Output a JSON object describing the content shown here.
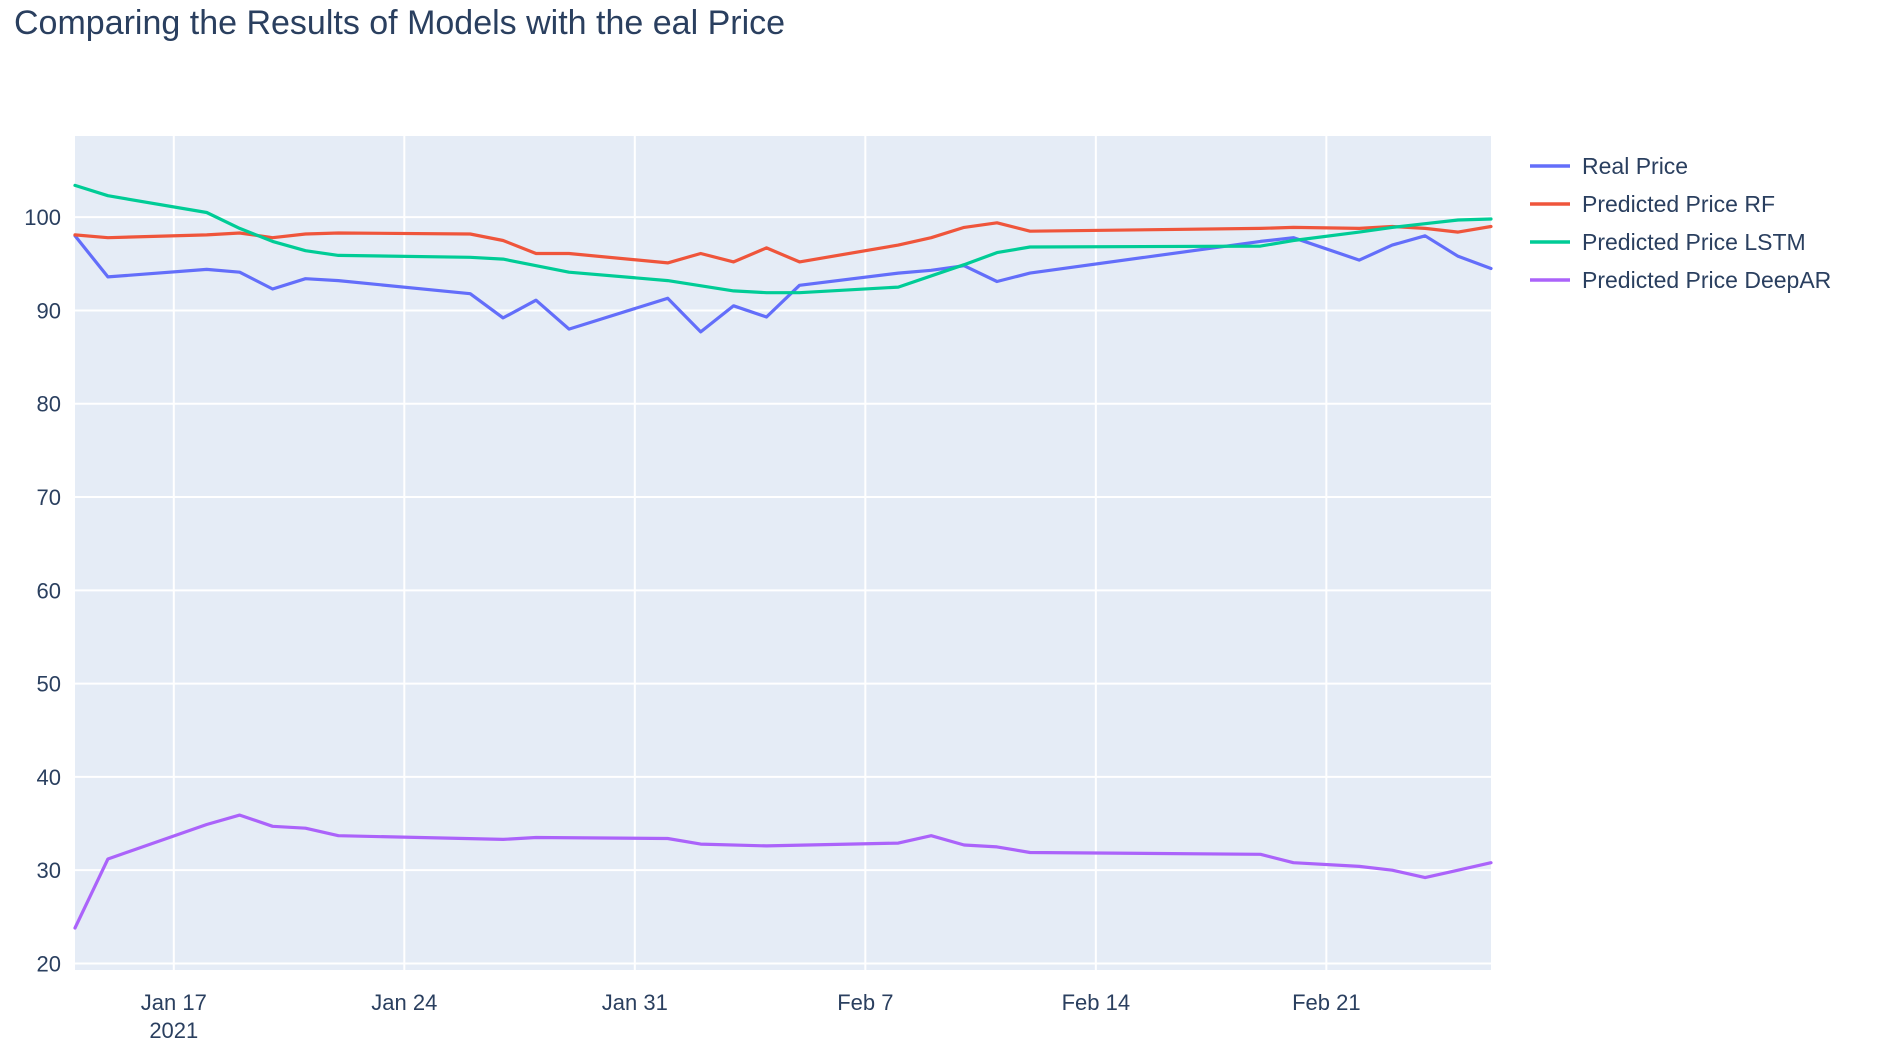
{
  "chart_data": {
    "type": "line",
    "title": "Comparing the Results of Models with the eal Price",
    "xlabel": "",
    "ylabel": "",
    "x_range": [
      "2021-01-14",
      "2021-02-26"
    ],
    "ylim": [
      19.3,
      108.7
    ],
    "x_ticks": [
      {
        "date": "2021-01-17",
        "label": "Jan 17",
        "sub": "2021"
      },
      {
        "date": "2021-01-24",
        "label": "Jan 24",
        "sub": ""
      },
      {
        "date": "2021-01-31",
        "label": "Jan 31",
        "sub": ""
      },
      {
        "date": "2021-02-07",
        "label": "Feb 7",
        "sub": ""
      },
      {
        "date": "2021-02-14",
        "label": "Feb 14",
        "sub": ""
      },
      {
        "date": "2021-02-21",
        "label": "Feb 21",
        "sub": ""
      }
    ],
    "y_ticks": [
      20,
      30,
      40,
      50,
      60,
      70,
      80,
      90,
      100
    ],
    "grid": true,
    "legend_position": "top-right",
    "plot_background": "#e5ecf6",
    "series": [
      {
        "name": "Real Price",
        "color": "#636efa",
        "points": [
          [
            "2021-01-14",
            98.0
          ],
          [
            "2021-01-15",
            93.6
          ],
          [
            "2021-01-18",
            94.4
          ],
          [
            "2021-01-19",
            94.1
          ],
          [
            "2021-01-20",
            92.3
          ],
          [
            "2021-01-21",
            93.4
          ],
          [
            "2021-01-22",
            93.2
          ],
          [
            "2021-01-26",
            91.8
          ],
          [
            "2021-01-27",
            89.2
          ],
          [
            "2021-01-28",
            91.1
          ],
          [
            "2021-01-29",
            88.0
          ],
          [
            "2021-02-01",
            91.3
          ],
          [
            "2021-02-02",
            87.7
          ],
          [
            "2021-02-03",
            90.5
          ],
          [
            "2021-02-04",
            89.3
          ],
          [
            "2021-02-05",
            92.7
          ],
          [
            "2021-02-08",
            94.0
          ],
          [
            "2021-02-09",
            94.3
          ],
          [
            "2021-02-10",
            94.8
          ],
          [
            "2021-02-11",
            93.1
          ],
          [
            "2021-02-12",
            94.0
          ],
          [
            "2021-02-19",
            97.4
          ],
          [
            "2021-02-20",
            97.8
          ],
          [
            "2021-02-22",
            95.4
          ],
          [
            "2021-02-23",
            97.0
          ],
          [
            "2021-02-24",
            98.0
          ],
          [
            "2021-02-25",
            95.8
          ],
          [
            "2021-02-26",
            94.5
          ]
        ]
      },
      {
        "name": "Predicted Price RF",
        "color": "#ef553b",
        "points": [
          [
            "2021-01-14",
            98.1
          ],
          [
            "2021-01-15",
            97.8
          ],
          [
            "2021-01-18",
            98.1
          ],
          [
            "2021-01-19",
            98.3
          ],
          [
            "2021-01-20",
            97.8
          ],
          [
            "2021-01-21",
            98.2
          ],
          [
            "2021-01-22",
            98.3
          ],
          [
            "2021-01-26",
            98.2
          ],
          [
            "2021-01-27",
            97.5
          ],
          [
            "2021-01-28",
            96.1
          ],
          [
            "2021-01-29",
            96.1
          ],
          [
            "2021-02-01",
            95.1
          ],
          [
            "2021-02-02",
            96.1
          ],
          [
            "2021-02-03",
            95.2
          ],
          [
            "2021-02-04",
            96.7
          ],
          [
            "2021-02-05",
            95.2
          ],
          [
            "2021-02-08",
            97.0
          ],
          [
            "2021-02-09",
            97.8
          ],
          [
            "2021-02-10",
            98.9
          ],
          [
            "2021-02-11",
            99.4
          ],
          [
            "2021-02-12",
            98.5
          ],
          [
            "2021-02-19",
            98.8
          ],
          [
            "2021-02-20",
            98.9
          ],
          [
            "2021-02-22",
            98.8
          ],
          [
            "2021-02-23",
            99.0
          ],
          [
            "2021-02-24",
            98.8
          ],
          [
            "2021-02-25",
            98.4
          ],
          [
            "2021-02-26",
            99.0
          ]
        ]
      },
      {
        "name": "Predicted Price LSTM",
        "color": "#00cc96",
        "points": [
          [
            "2021-01-14",
            103.4
          ],
          [
            "2021-01-15",
            102.3
          ],
          [
            "2021-01-18",
            100.5
          ],
          [
            "2021-01-19",
            98.8
          ],
          [
            "2021-01-20",
            97.4
          ],
          [
            "2021-01-21",
            96.4
          ],
          [
            "2021-01-22",
            95.9
          ],
          [
            "2021-01-26",
            95.7
          ],
          [
            "2021-01-27",
            95.5
          ],
          [
            "2021-01-29",
            94.1
          ],
          [
            "2021-02-01",
            93.2
          ],
          [
            "2021-02-03",
            92.1
          ],
          [
            "2021-02-04",
            91.9
          ],
          [
            "2021-02-05",
            91.9
          ],
          [
            "2021-02-08",
            92.5
          ],
          [
            "2021-02-10",
            94.9
          ],
          [
            "2021-02-11",
            96.2
          ],
          [
            "2021-02-12",
            96.8
          ],
          [
            "2021-02-19",
            96.9
          ],
          [
            "2021-02-20",
            97.5
          ],
          [
            "2021-02-22",
            98.4
          ],
          [
            "2021-02-23",
            98.9
          ],
          [
            "2021-02-24",
            99.3
          ],
          [
            "2021-02-25",
            99.7
          ],
          [
            "2021-02-26",
            99.8
          ]
        ]
      },
      {
        "name": "Predicted Price DeepAR",
        "color": "#ab63fa",
        "points": [
          [
            "2021-01-14",
            23.8
          ],
          [
            "2021-01-15",
            31.2
          ],
          [
            "2021-01-18",
            34.9
          ],
          [
            "2021-01-19",
            35.9
          ],
          [
            "2021-01-20",
            34.7
          ],
          [
            "2021-01-21",
            34.5
          ],
          [
            "2021-01-22",
            33.7
          ],
          [
            "2021-01-27",
            33.3
          ],
          [
            "2021-01-28",
            33.5
          ],
          [
            "2021-02-01",
            33.4
          ],
          [
            "2021-02-02",
            32.8
          ],
          [
            "2021-02-04",
            32.6
          ],
          [
            "2021-02-08",
            32.9
          ],
          [
            "2021-02-09",
            33.7
          ],
          [
            "2021-02-10",
            32.7
          ],
          [
            "2021-02-11",
            32.5
          ],
          [
            "2021-02-12",
            31.9
          ],
          [
            "2021-02-19",
            31.7
          ],
          [
            "2021-02-20",
            30.8
          ],
          [
            "2021-02-22",
            30.4
          ],
          [
            "2021-02-23",
            30.0
          ],
          [
            "2021-02-24",
            29.2
          ],
          [
            "2021-02-25",
            30.0
          ],
          [
            "2021-02-26",
            30.8
          ]
        ]
      }
    ]
  }
}
